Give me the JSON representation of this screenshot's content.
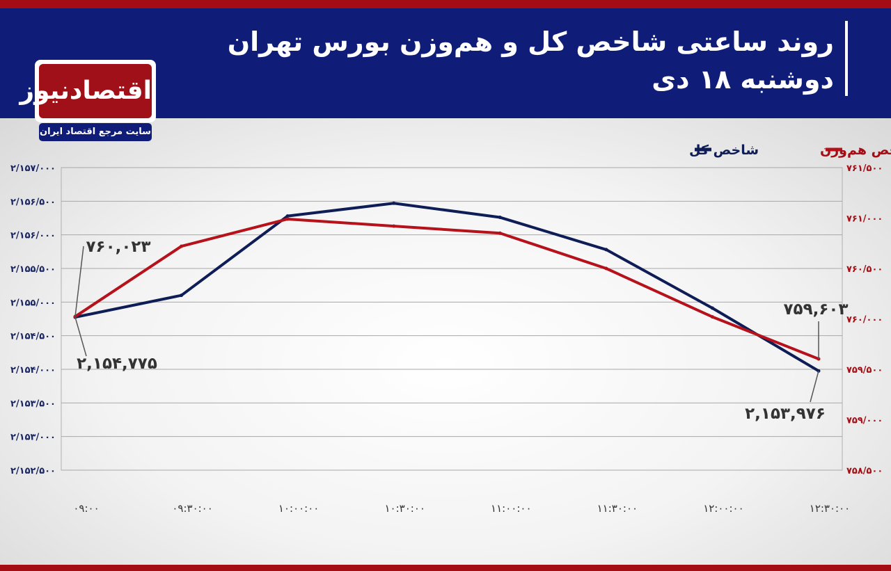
{
  "header": {
    "title_line1": "روند ساعتی شاخص کل و هم‌وزن بورس تهران",
    "title_line2": "دوشنبه ۱۸ دی"
  },
  "logo": {
    "name": "اقتصادنیوز",
    "tagline": "سایت مرجع اقتصاد ایران"
  },
  "colors": {
    "header_bg": "#0f1d78",
    "accent_red": "#a50d14",
    "series_total": "#0f1d57",
    "series_equal": "#b5121b"
  },
  "chart_data": {
    "type": "line",
    "x": [
      "۰۹:۰۰",
      "۰۹:۳۰:۰۰",
      "۱۰:۰۰:۰۰",
      "۱۰:۳۰:۰۰",
      "۱۱:۰۰:۰۰",
      "۱۱:۳۰:۰۰",
      "۱۲:۰۰:۰۰",
      "۱۲:۳۰:۰۰"
    ],
    "legend": [
      "شاخص هم‌وزن",
      "شاخص کل"
    ],
    "legend_placement": "top-right",
    "grid": true,
    "left_axis": {
      "series": "شاخص کل",
      "ylim": [
        2152500,
        2157000
      ],
      "ticks": [
        {
          "value": 2157000,
          "label": "۲/۱۵۷/۰۰۰"
        },
        {
          "value": 2156500,
          "label": "۲/۱۵۶/۵۰۰"
        },
        {
          "value": 2156000,
          "label": "۲/۱۵۶/۰۰۰"
        },
        {
          "value": 2155500,
          "label": "۲/۱۵۵/۵۰۰"
        },
        {
          "value": 2155000,
          "label": "۲/۱۵۵/۰۰۰"
        },
        {
          "value": 2154500,
          "label": "۲/۱۵۴/۵۰۰"
        },
        {
          "value": 2154000,
          "label": "۲/۱۵۴/۰۰۰"
        },
        {
          "value": 2153500,
          "label": "۲/۱۵۳/۵۰۰"
        },
        {
          "value": 2153000,
          "label": "۲/۱۵۳/۰۰۰"
        },
        {
          "value": 2152500,
          "label": "۲/۱۵۲/۵۰۰"
        }
      ]
    },
    "right_axis": {
      "series": "شاخص هم‌وزن",
      "ylim": [
        758500,
        761500
      ],
      "ticks": [
        {
          "value": 761500,
          "label": "۷۶۱/۵۰۰"
        },
        {
          "value": 761000,
          "label": "۷۶۱/۰۰۰"
        },
        {
          "value": 760500,
          "label": "۷۶۰/۵۰۰"
        },
        {
          "value": 760000,
          "label": "۷۶۰/۰۰۰"
        },
        {
          "value": 759500,
          "label": "۷۵۹/۵۰۰"
        },
        {
          "value": 759000,
          "label": "۷۵۹/۰۰۰"
        },
        {
          "value": 758500,
          "label": "۷۵۸/۵۰۰"
        }
      ]
    },
    "series": [
      {
        "name": "شاخص کل",
        "axis": "left",
        "color": "#0f1d57",
        "values": [
          2154775,
          2155100,
          2156280,
          2156470,
          2156260,
          2155780,
          2154910,
          2153976
        ]
      },
      {
        "name": "شاخص هم‌وزن",
        "axis": "right",
        "color": "#b5121b",
        "values": [
          760023,
          760720,
          760990,
          760920,
          760850,
          760500,
          760020,
          759603
        ]
      }
    ],
    "annotations": [
      {
        "text": "۷۶۰,۰۲۳",
        "series": "شاخص هم‌وزن",
        "index": 0
      },
      {
        "text": "۲,۱۵۴,۷۷۵",
        "series": "شاخص کل",
        "index": 0
      },
      {
        "text": "۷۵۹,۶۰۳",
        "series": "شاخص هم‌وزن",
        "index": 7
      },
      {
        "text": "۲,۱۵۳,۹۷۶",
        "series": "شاخص کل",
        "index": 7
      }
    ]
  }
}
